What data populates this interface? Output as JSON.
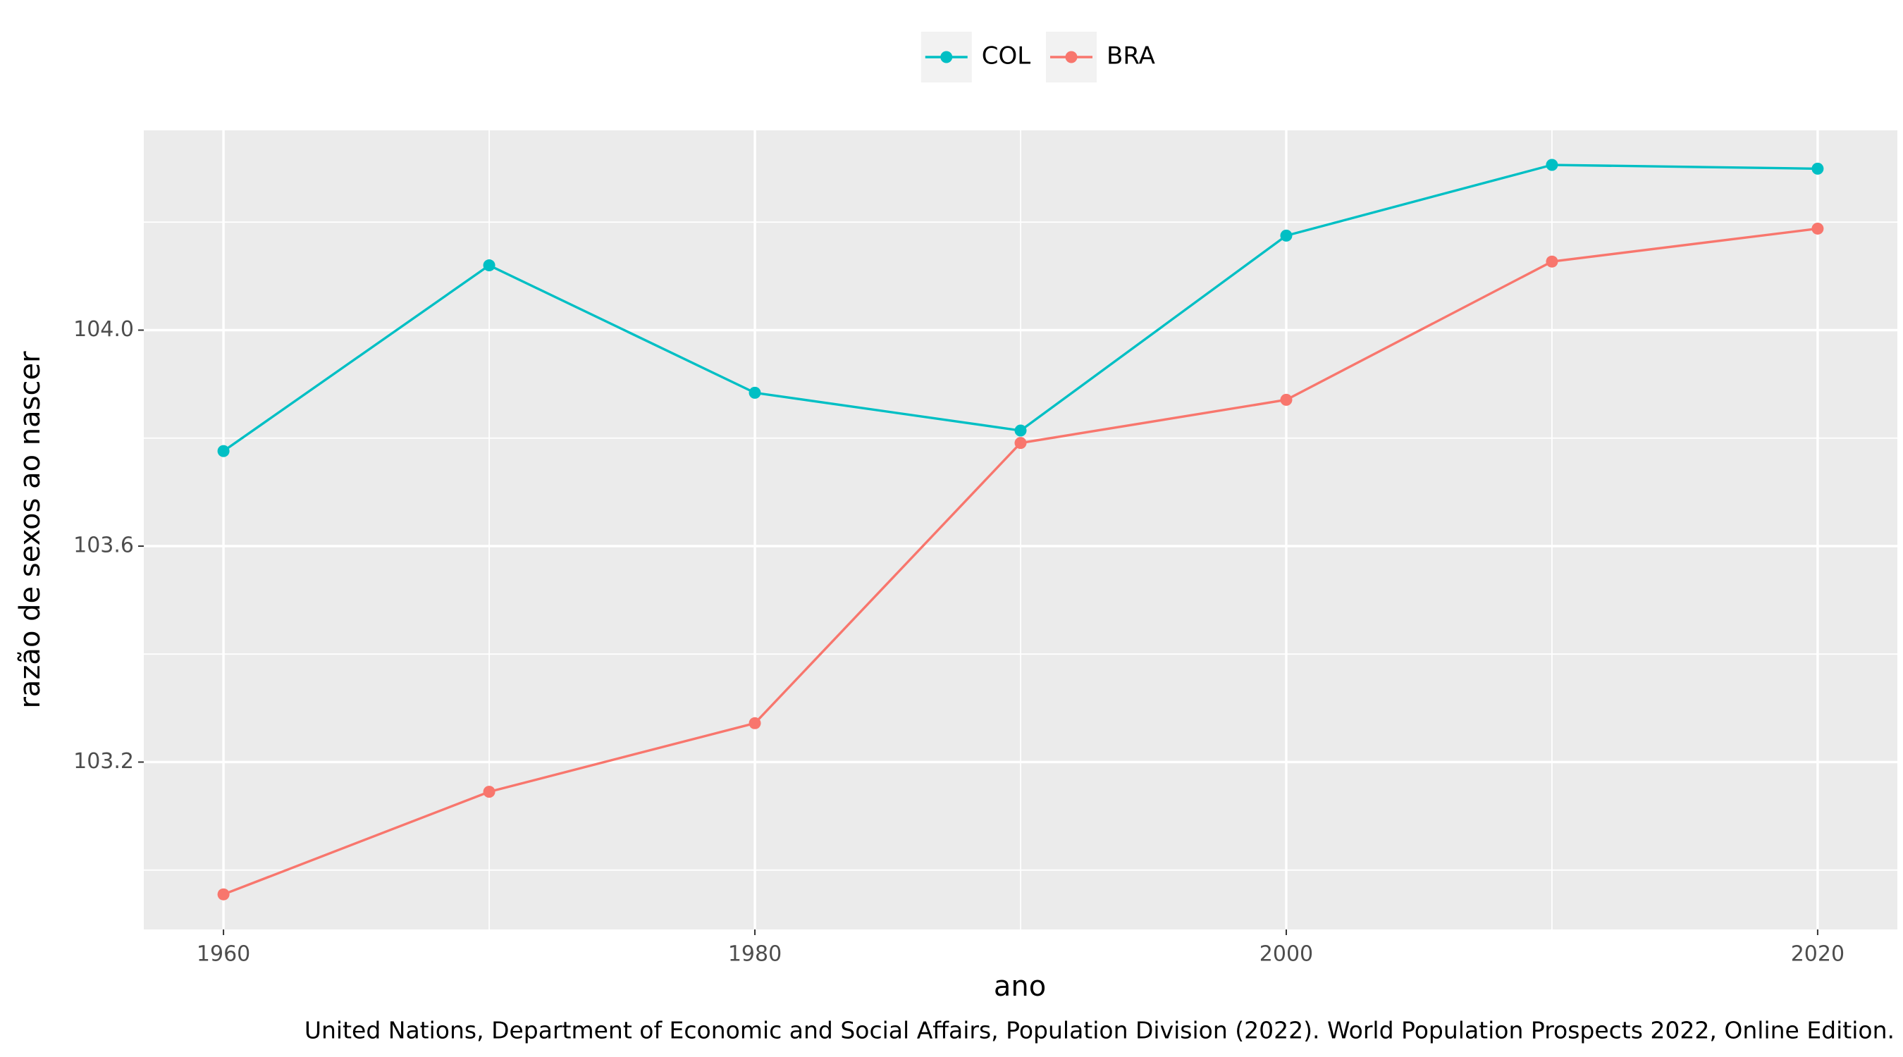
{
  "chart_data": {
    "type": "line",
    "x": [
      1960,
      1970,
      1980,
      1990,
      2000,
      2010,
      2020
    ],
    "series": [
      {
        "name": "COL",
        "color": "#00bfc4",
        "values": [
          103.776,
          104.12,
          103.884,
          103.814,
          104.175,
          104.306,
          104.299
        ]
      },
      {
        "name": "BRA",
        "color": "#f8766d",
        "values": [
          102.955,
          103.145,
          103.272,
          103.791,
          103.871,
          104.127,
          104.188
        ]
      }
    ],
    "xlim": [
      1957,
      2023
    ],
    "xticks": [
      1960,
      1980,
      2000,
      2020
    ],
    "ylim": [
      102.89,
      104.37
    ],
    "yticks": [
      {
        "value": 103.2,
        "label": "103.2"
      },
      {
        "value": 103.6,
        "label": "103.6"
      },
      {
        "value": 104.0,
        "label": "104.0"
      }
    ],
    "xlabel": "ano",
    "ylabel": "razão de sexos ao nascer",
    "caption": "United Nations, Department of Economic and Social Affairs, Population Division (2022). World Population Prospects 2022, Online Edition.",
    "grid": true,
    "legend": "top"
  }
}
